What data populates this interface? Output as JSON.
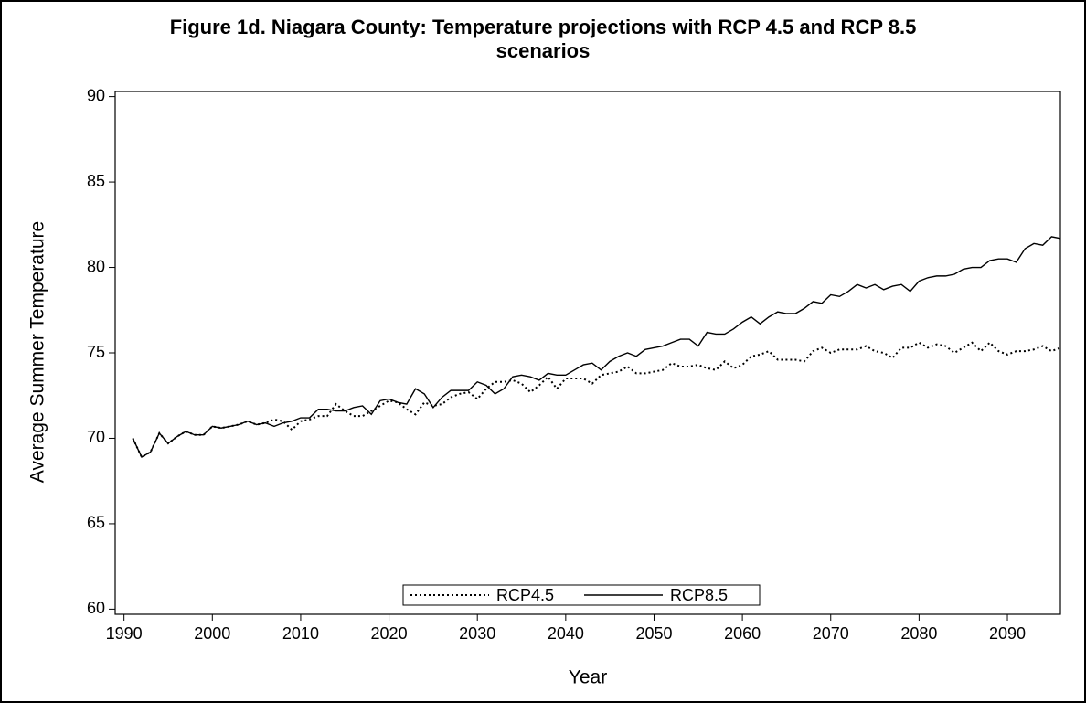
{
  "chart_data": {
    "type": "line",
    "title": "Figure 1d. Niagara County: Temperature projections with RCP 4.5 and RCP 8.5 scenarios",
    "x_label": "Year",
    "y_label": "Average Summer Temperature",
    "x": [
      1991,
      1992,
      1993,
      1994,
      1995,
      1996,
      1997,
      1998,
      1999,
      2000,
      2001,
      2002,
      2003,
      2004,
      2005,
      2006,
      2007,
      2008,
      2009,
      2010,
      2011,
      2012,
      2013,
      2014,
      2015,
      2016,
      2017,
      2018,
      2019,
      2020,
      2021,
      2022,
      2023,
      2024,
      2025,
      2026,
      2027,
      2028,
      2029,
      2030,
      2031,
      2032,
      2033,
      2034,
      2035,
      2036,
      2037,
      2038,
      2039,
      2040,
      2041,
      2042,
      2043,
      2044,
      2045,
      2046,
      2047,
      2048,
      2049,
      2050,
      2051,
      2052,
      2053,
      2054,
      2055,
      2056,
      2057,
      2058,
      2059,
      2060,
      2061,
      2062,
      2063,
      2064,
      2065,
      2066,
      2067,
      2068,
      2069,
      2070,
      2071,
      2072,
      2073,
      2074,
      2075,
      2076,
      2077,
      2078,
      2079,
      2080,
      2081,
      2082,
      2083,
      2084,
      2085,
      2086,
      2087,
      2088,
      2089,
      2090,
      2091,
      2092,
      2093,
      2094,
      2095,
      2096
    ],
    "series": [
      {
        "name": "RCP4.5",
        "color": "#000000",
        "style": "dotted",
        "values": [
          70.0,
          68.9,
          69.2,
          70.3,
          69.7,
          70.1,
          70.4,
          70.2,
          70.2,
          70.7,
          70.6,
          70.7,
          70.8,
          71.0,
          70.8,
          70.9,
          71.1,
          71.0,
          70.5,
          71.0,
          71.1,
          71.3,
          71.3,
          72.0,
          71.6,
          71.3,
          71.3,
          71.6,
          71.9,
          72.2,
          72.1,
          71.7,
          71.4,
          72.1,
          71.9,
          72.0,
          72.4,
          72.6,
          72.7,
          72.3,
          72.9,
          73.3,
          73.3,
          73.4,
          73.2,
          72.7,
          73.1,
          73.6,
          72.9,
          73.5,
          73.5,
          73.5,
          73.2,
          73.7,
          73.8,
          73.9,
          74.2,
          73.8,
          73.8,
          73.9,
          74.0,
          74.4,
          74.2,
          74.2,
          74.3,
          74.1,
          74.0,
          74.5,
          74.1,
          74.3,
          74.8,
          74.9,
          75.1,
          74.6,
          74.6,
          74.6,
          74.5,
          75.1,
          75.3,
          75.0,
          75.2,
          75.2,
          75.2,
          75.4,
          75.1,
          75.0,
          74.7,
          75.3,
          75.3,
          75.6,
          75.3,
          75.5,
          75.4,
          75.0,
          75.3,
          75.6,
          75.1,
          75.6,
          75.1,
          74.9,
          75.1,
          75.1,
          75.2,
          75.4,
          75.1,
          75.3
        ]
      },
      {
        "name": "RCP8.5",
        "color": "#000000",
        "style": "solid",
        "values": [
          70.0,
          68.9,
          69.2,
          70.3,
          69.7,
          70.1,
          70.4,
          70.2,
          70.2,
          70.7,
          70.6,
          70.7,
          70.8,
          71.0,
          70.8,
          70.9,
          70.7,
          70.9,
          71.0,
          71.2,
          71.2,
          71.7,
          71.7,
          71.6,
          71.6,
          71.8,
          71.9,
          71.4,
          72.2,
          72.3,
          72.1,
          72.0,
          72.9,
          72.6,
          71.8,
          72.4,
          72.8,
          72.8,
          72.8,
          73.3,
          73.1,
          72.6,
          72.9,
          73.6,
          73.7,
          73.6,
          73.4,
          73.8,
          73.7,
          73.7,
          74.0,
          74.3,
          74.4,
          74.0,
          74.5,
          74.8,
          75.0,
          74.8,
          75.2,
          75.3,
          75.4,
          75.6,
          75.8,
          75.8,
          75.4,
          76.2,
          76.1,
          76.1,
          76.4,
          76.8,
          77.1,
          76.7,
          77.1,
          77.4,
          77.3,
          77.3,
          77.6,
          78.0,
          77.9,
          78.4,
          78.3,
          78.6,
          79.0,
          78.8,
          79.0,
          78.7,
          78.9,
          79.0,
          78.6,
          79.2,
          79.4,
          79.5,
          79.5,
          79.6,
          79.9,
          80.0,
          80.0,
          80.4,
          80.5,
          80.5,
          80.3,
          81.1,
          81.4,
          81.3,
          81.8,
          81.7
        ]
      }
    ],
    "xlim": [
      1989,
      2096
    ],
    "ylim": [
      59.7,
      90.3
    ],
    "xticks": [
      1990,
      2000,
      2010,
      2020,
      2030,
      2040,
      2050,
      2060,
      2070,
      2080,
      2090
    ],
    "yticks": [
      60,
      65,
      70,
      75,
      80,
      85,
      90
    ],
    "legend": "bottom"
  }
}
